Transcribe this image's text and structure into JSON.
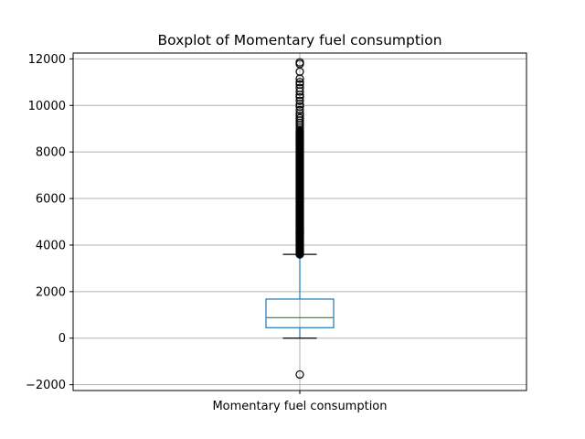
{
  "chart_data": {
    "type": "boxplot",
    "title": "Boxplot of Momentary fuel consumption",
    "xlabel": "",
    "ylabel": "",
    "categories": [
      "Momentary fuel consumption"
    ],
    "ylim": [
      -2250,
      12250
    ],
    "yticks": [
      -2000,
      0,
      2000,
      4000,
      6000,
      8000,
      10000,
      12000
    ],
    "ytick_labels": [
      "−2000",
      "0",
      "2000",
      "4000",
      "6000",
      "8000",
      "10000",
      "12000"
    ],
    "grid": true,
    "box": {
      "whisker_low": 0,
      "q1": 450,
      "median": 880,
      "q3": 1680,
      "whisker_high": 3600
    },
    "outliers_high_dense_range": [
      3600,
      8900
    ],
    "outliers": [
      -1560,
      8950,
      9050,
      9150,
      9250,
      9350,
      9450,
      9550,
      9650,
      9800,
      9950,
      10050,
      10200,
      10350,
      10450,
      10600,
      10750,
      10900,
      11000,
      11150,
      11450,
      11780,
      11850
    ],
    "colors": {
      "box": "#1f77b4",
      "median": "#2ca02c",
      "whisker_cap": "#000000",
      "grid": "#b0b0b0",
      "outlier_edge": "#000000"
    }
  }
}
